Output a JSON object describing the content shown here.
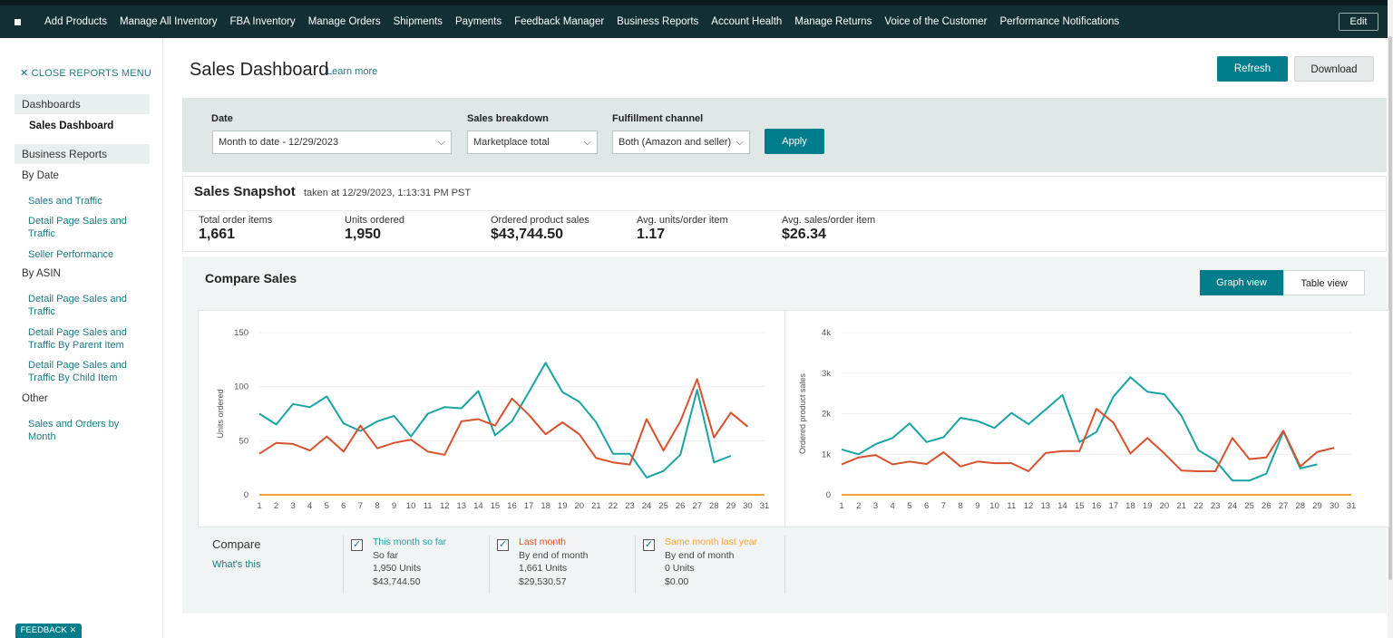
{
  "nav": {
    "items": [
      "Add Products",
      "Manage All Inventory",
      "FBA Inventory",
      "Manage Orders",
      "Shipments",
      "Payments",
      "Feedback Manager",
      "Business Reports",
      "Account Health",
      "Manage Returns",
      "Voice of the Customer",
      "Performance Notifications"
    ],
    "edit_label": "Edit"
  },
  "sidebar": {
    "close_label": "✕  CLOSE REPORTS MENU",
    "dashboards_header": "Dashboards",
    "active_item": "Sales Dashboard",
    "business_reports_header": "Business Reports",
    "by_date_label": "By Date",
    "by_date_links": [
      "Sales and Traffic",
      "Detail Page Sales and Traffic",
      "Seller Performance"
    ],
    "by_asin_label": "By ASIN",
    "by_asin_links": [
      "Detail Page Sales and Traffic",
      "Detail Page Sales and Traffic By Parent Item",
      "Detail Page Sales and Traffic By Child Item"
    ],
    "other_label": "Other",
    "other_links": [
      "Sales and Orders by Month"
    ]
  },
  "header": {
    "title": "Sales Dashboard",
    "learn_more": "Learn more",
    "refresh_label": "Refresh",
    "download_label": "Download"
  },
  "filters": {
    "date_label": "Date",
    "date_value": "Month to date - 12/29/2023",
    "breakdown_label": "Sales breakdown",
    "breakdown_value": "Marketplace total",
    "channel_label": "Fulfillment channel",
    "channel_value": "Both (Amazon and seller)",
    "apply_label": "Apply"
  },
  "snapshot": {
    "title": "Sales Snapshot",
    "taken": "taken at 12/29/2023, 1:13:31 PM PST",
    "metrics": [
      {
        "label": "Total order items",
        "value": "1,661"
      },
      {
        "label": "Units ordered",
        "value": "1,950"
      },
      {
        "label": "Ordered product sales",
        "value": "$43,744.50"
      },
      {
        "label": "Avg. units/order item",
        "value": "1.17"
      },
      {
        "label": "Avg. sales/order item",
        "value": "$26.34"
      }
    ]
  },
  "compare": {
    "title": "Compare Sales",
    "graph_view_label": "Graph view",
    "table_view_label": "Table view",
    "compare_label": "Compare",
    "whats_this": "What's this",
    "legend": [
      {
        "title": "This month so far",
        "sub": "So far",
        "units": "1,950 Units",
        "sales": "$43,744.50",
        "color": "#1aa3a3"
      },
      {
        "title": "Last month",
        "sub": "By end of month",
        "units": "1,661 Units",
        "sales": "$29,530.57",
        "color": "#d8512e"
      },
      {
        "title": "Same month last year",
        "sub": "By end of month",
        "units": "0 Units",
        "sales": "$0.00",
        "color": "#f2a33a"
      }
    ]
  },
  "chart_data": [
    {
      "type": "line",
      "ylabel": "Units ordered",
      "ylim": [
        0,
        150
      ],
      "yticks": [
        "0",
        "50",
        "100",
        "150"
      ],
      "x": [
        1,
        2,
        3,
        4,
        5,
        6,
        7,
        8,
        9,
        10,
        11,
        12,
        13,
        14,
        15,
        16,
        17,
        18,
        19,
        20,
        21,
        22,
        23,
        24,
        25,
        26,
        27,
        28,
        29,
        30,
        31
      ],
      "grid": true,
      "series": [
        {
          "name": "This month so far",
          "color": "#1aa3a3",
          "values": [
            75,
            65,
            84,
            81,
            91,
            66,
            59,
            68,
            73,
            54,
            75,
            81,
            80,
            96,
            55,
            68,
            95,
            122,
            95,
            86,
            67,
            38,
            38,
            16,
            22,
            37,
            97,
            30,
            36,
            null,
            null
          ]
        },
        {
          "name": "Last month",
          "color": "#d8512e",
          "values": [
            38,
            48,
            47,
            41,
            54,
            40,
            64,
            43,
            48,
            51,
            40,
            37,
            68,
            70,
            64,
            89,
            74,
            56,
            67,
            56,
            34,
            30,
            28,
            70,
            41,
            68,
            107,
            53,
            76,
            63,
            null
          ]
        },
        {
          "name": "Same month last year",
          "color": "#f2a33a",
          "values": [
            0,
            0,
            0,
            0,
            0,
            0,
            0,
            0,
            0,
            0,
            0,
            0,
            0,
            0,
            0,
            0,
            0,
            0,
            0,
            0,
            0,
            0,
            0,
            0,
            0,
            0,
            0,
            0,
            0,
            0,
            0
          ]
        }
      ]
    },
    {
      "type": "line",
      "ylabel": "Ordered product sales",
      "ylim": [
        0,
        4000
      ],
      "yticks": [
        "0",
        "1k",
        "2k",
        "3k",
        "4k"
      ],
      "x": [
        1,
        2,
        3,
        4,
        5,
        6,
        7,
        8,
        9,
        10,
        11,
        12,
        13,
        14,
        15,
        16,
        17,
        18,
        19,
        20,
        21,
        22,
        23,
        24,
        25,
        26,
        27,
        28,
        29,
        30,
        31
      ],
      "grid": true,
      "series": [
        {
          "name": "This month so far",
          "color": "#1aa3a3",
          "values": [
            1120,
            1000,
            1250,
            1400,
            1760,
            1300,
            1420,
            1900,
            1820,
            1650,
            2020,
            1740,
            2100,
            2460,
            1300,
            1550,
            2420,
            2900,
            2540,
            2480,
            1950,
            1100,
            850,
            350,
            350,
            520,
            1560,
            650,
            750,
            null,
            null
          ]
        },
        {
          "name": "Last month",
          "color": "#d8512e",
          "values": [
            750,
            920,
            980,
            750,
            820,
            760,
            1050,
            700,
            820,
            780,
            780,
            580,
            1030,
            1080,
            1080,
            2120,
            1780,
            1020,
            1400,
            1020,
            600,
            580,
            580,
            1400,
            880,
            920,
            1580,
            700,
            1060,
            1160,
            null
          ]
        },
        {
          "name": "Same month last year",
          "color": "#f2a33a",
          "values": [
            0,
            0,
            0,
            0,
            0,
            0,
            0,
            0,
            0,
            0,
            0,
            0,
            0,
            0,
            0,
            0,
            0,
            0,
            0,
            0,
            0,
            0,
            0,
            0,
            0,
            0,
            0,
            0,
            0,
            0,
            0
          ]
        }
      ]
    }
  ],
  "feedback_label": "FEEDBACK ✕"
}
